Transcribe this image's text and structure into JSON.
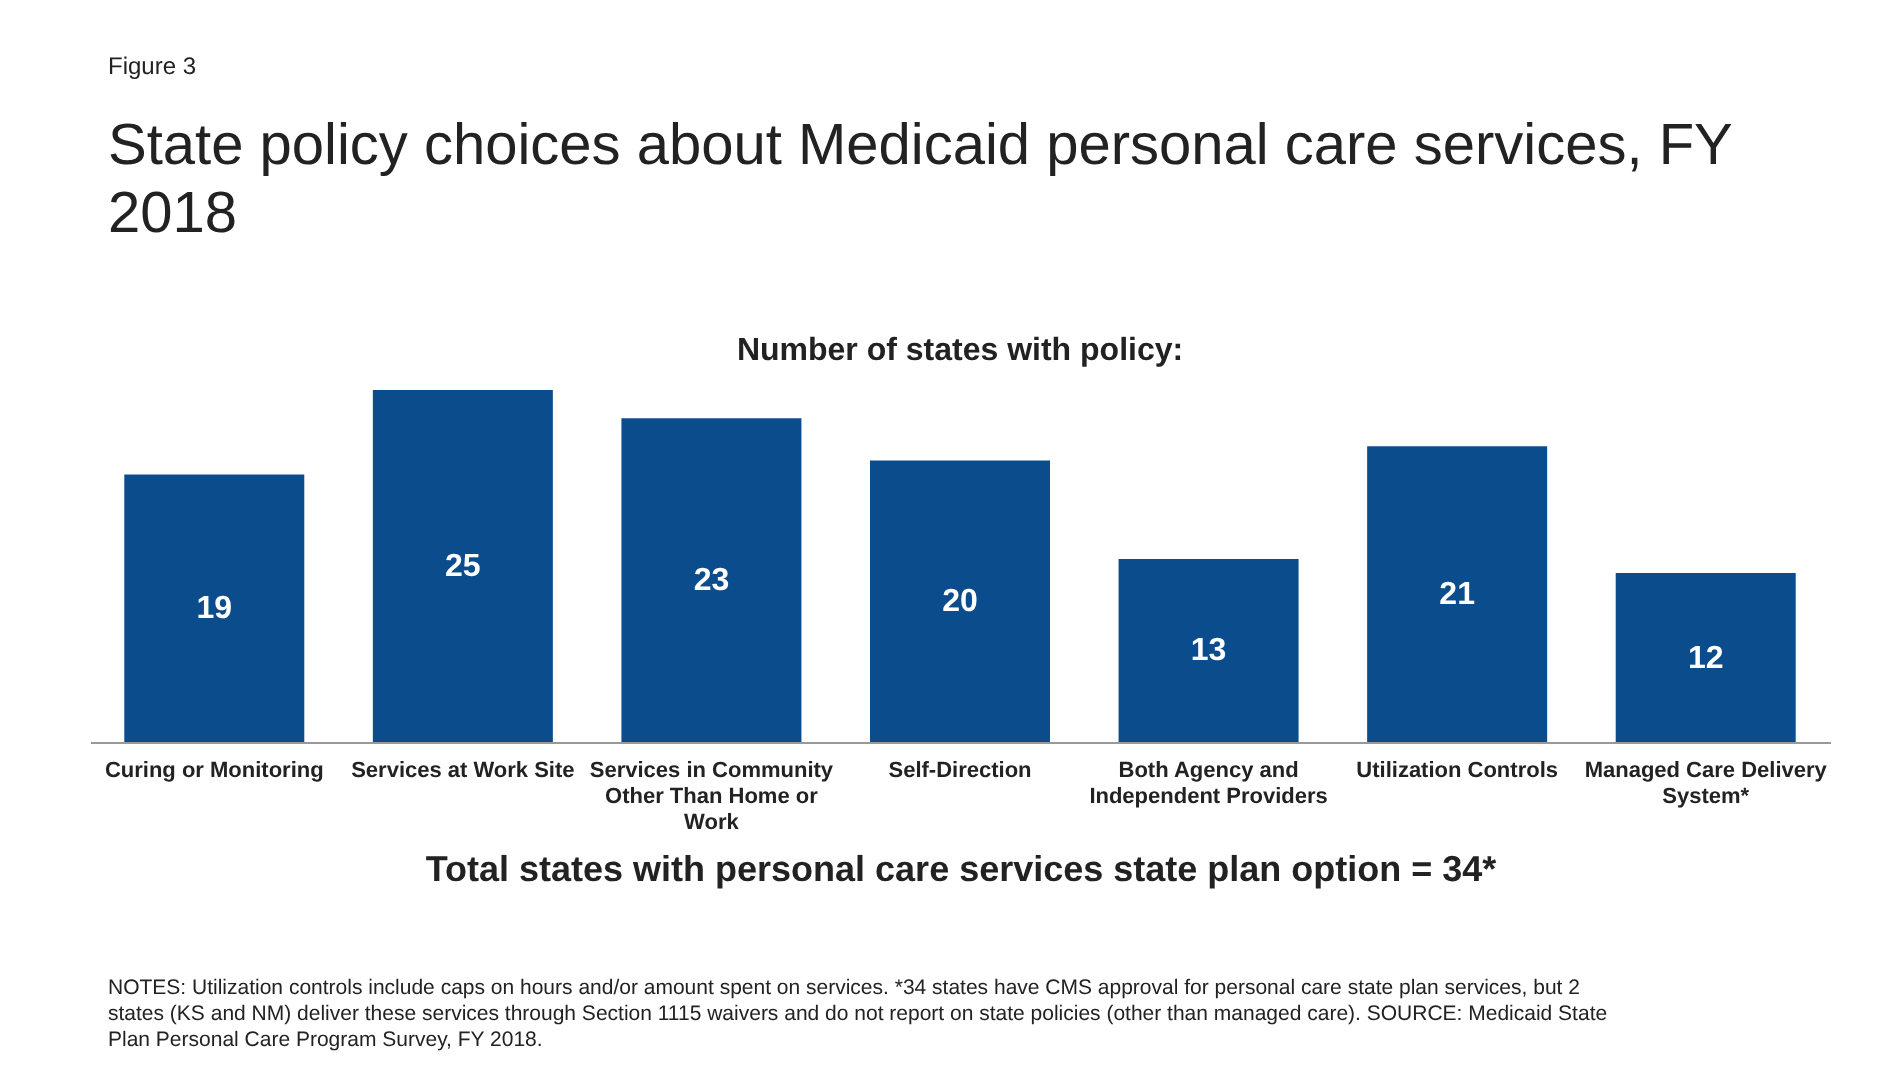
{
  "chart_data": {
    "type": "bar",
    "title": "State policy choices about Medicaid personal care services, FY 2018",
    "subtitle": "Number of states with policy:",
    "xlabel": "Total states with personal care services state plan option = 34*",
    "categories": [
      "Curing or Monitoring",
      "Services at Work Site",
      "Services in Community Other Than Home or Work",
      "Self-Direction",
      "Both Agency and Independent Providers",
      "Utilization Controls",
      "Managed Care Delivery System*"
    ],
    "values": [
      19,
      25,
      23,
      20,
      13,
      21,
      12
    ],
    "color": "#0b4c8c",
    "data_labels": true,
    "tick_labels": "x",
    "annotations": [
      "Figure 3",
      "NOTES: Utilization controls include caps on hours and/or amount spent on services. *34 states have CMS approval for personal care state plan services, but 2 states (KS and NM) deliver these services through Section 1115 waivers and do not report on state policies (other than managed care). SOURCE: Medicaid State Plan Personal Care Program Survey, FY 2018."
    ]
  }
}
